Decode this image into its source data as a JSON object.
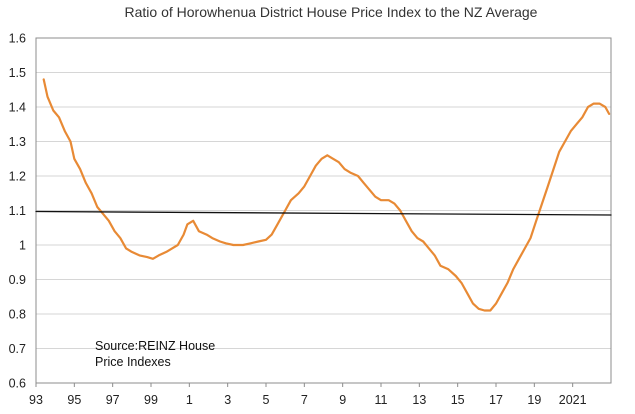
{
  "chart_data": {
    "type": "line",
    "title": "Ratio of Horowhenua District House Price Index to the NZ Average",
    "annotation": [
      "Source:REINZ House",
      "Price Indexes"
    ],
    "xlabel": "",
    "ylabel": "",
    "xlim": [
      1993,
      2023
    ],
    "ylim": [
      0.6,
      1.6
    ],
    "y_ticks": [
      "0.6",
      "0.7",
      "0.8",
      "0.9",
      "1",
      "1.1",
      "1.2",
      "1.3",
      "1.4",
      "1.5",
      "1.6"
    ],
    "x_ticks": [
      {
        "value": 1993,
        "label": "93"
      },
      {
        "value": 1995,
        "label": "95"
      },
      {
        "value": 1997,
        "label": "97"
      },
      {
        "value": 1999,
        "label": "99"
      },
      {
        "value": 2001,
        "label": "1"
      },
      {
        "value": 2003,
        "label": "3"
      },
      {
        "value": 2005,
        "label": "5"
      },
      {
        "value": 2007,
        "label": "7"
      },
      {
        "value": 2009,
        "label": "9"
      },
      {
        "value": 2011,
        "label": "11"
      },
      {
        "value": 2013,
        "label": "13"
      },
      {
        "value": 2015,
        "label": "15"
      },
      {
        "value": 2017,
        "label": "17"
      },
      {
        "value": 2019,
        "label": "19"
      },
      {
        "value": 2021,
        "label": "2021"
      }
    ],
    "grid": true,
    "series": [
      {
        "color": "#e88a35",
        "points": [
          [
            1993.4,
            1.48
          ],
          [
            1993.6,
            1.43
          ],
          [
            1993.9,
            1.39
          ],
          [
            1994.2,
            1.37
          ],
          [
            1994.5,
            1.33
          ],
          [
            1994.8,
            1.3
          ],
          [
            1995.0,
            1.25
          ],
          [
            1995.3,
            1.22
          ],
          [
            1995.6,
            1.18
          ],
          [
            1995.9,
            1.15
          ],
          [
            1996.2,
            1.11
          ],
          [
            1996.5,
            1.09
          ],
          [
            1996.8,
            1.07
          ],
          [
            1997.1,
            1.04
          ],
          [
            1997.4,
            1.02
          ],
          [
            1997.7,
            0.99
          ],
          [
            1998.0,
            0.98
          ],
          [
            1998.4,
            0.97
          ],
          [
            1998.8,
            0.965
          ],
          [
            1999.1,
            0.96
          ],
          [
            1999.4,
            0.97
          ],
          [
            1999.8,
            0.98
          ],
          [
            2000.1,
            0.99
          ],
          [
            2000.4,
            1.0
          ],
          [
            2000.7,
            1.03
          ],
          [
            2000.9,
            1.06
          ],
          [
            2001.2,
            1.07
          ],
          [
            2001.5,
            1.04
          ],
          [
            2001.9,
            1.03
          ],
          [
            2002.2,
            1.02
          ],
          [
            2002.6,
            1.01
          ],
          [
            2002.9,
            1.005
          ],
          [
            2003.3,
            1.0
          ],
          [
            2003.8,
            1.0
          ],
          [
            2004.2,
            1.005
          ],
          [
            2004.6,
            1.01
          ],
          [
            2005.0,
            1.015
          ],
          [
            2005.3,
            1.03
          ],
          [
            2005.6,
            1.06
          ],
          [
            2006.0,
            1.1
          ],
          [
            2006.3,
            1.13
          ],
          [
            2006.7,
            1.15
          ],
          [
            2007.0,
            1.17
          ],
          [
            2007.3,
            1.2
          ],
          [
            2007.6,
            1.23
          ],
          [
            2007.9,
            1.25
          ],
          [
            2008.2,
            1.26
          ],
          [
            2008.5,
            1.25
          ],
          [
            2008.8,
            1.24
          ],
          [
            2009.1,
            1.22
          ],
          [
            2009.4,
            1.21
          ],
          [
            2009.8,
            1.2
          ],
          [
            2010.1,
            1.18
          ],
          [
            2010.4,
            1.16
          ],
          [
            2010.7,
            1.14
          ],
          [
            2011.0,
            1.13
          ],
          [
            2011.4,
            1.13
          ],
          [
            2011.7,
            1.12
          ],
          [
            2012.0,
            1.1
          ],
          [
            2012.3,
            1.07
          ],
          [
            2012.6,
            1.04
          ],
          [
            2012.9,
            1.02
          ],
          [
            2013.2,
            1.01
          ],
          [
            2013.5,
            0.99
          ],
          [
            2013.8,
            0.97
          ],
          [
            2014.1,
            0.94
          ],
          [
            2014.5,
            0.93
          ],
          [
            2014.9,
            0.91
          ],
          [
            2015.2,
            0.89
          ],
          [
            2015.5,
            0.86
          ],
          [
            2015.8,
            0.83
          ],
          [
            2016.1,
            0.815
          ],
          [
            2016.4,
            0.81
          ],
          [
            2016.7,
            0.81
          ],
          [
            2017.0,
            0.83
          ],
          [
            2017.3,
            0.86
          ],
          [
            2017.6,
            0.89
          ],
          [
            2017.9,
            0.93
          ],
          [
            2018.2,
            0.96
          ],
          [
            2018.5,
            0.99
          ],
          [
            2018.8,
            1.02
          ],
          [
            2019.1,
            1.07
          ],
          [
            2019.4,
            1.12
          ],
          [
            2019.7,
            1.17
          ],
          [
            2020.0,
            1.22
          ],
          [
            2020.3,
            1.27
          ],
          [
            2020.6,
            1.3
          ],
          [
            2020.9,
            1.33
          ],
          [
            2021.2,
            1.35
          ],
          [
            2021.5,
            1.37
          ],
          [
            2021.8,
            1.4
          ],
          [
            2022.1,
            1.41
          ],
          [
            2022.4,
            1.41
          ],
          [
            2022.7,
            1.4
          ],
          [
            2022.9,
            1.38
          ]
        ]
      },
      {
        "color": "#111111",
        "points": [
          [
            1993.0,
            1.097
          ],
          [
            2023.0,
            1.087
          ]
        ]
      }
    ]
  }
}
